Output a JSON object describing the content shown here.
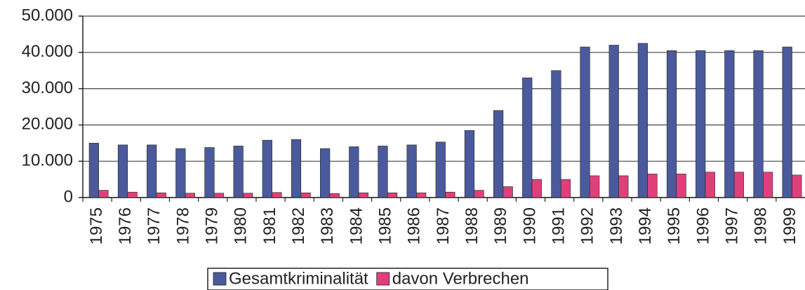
{
  "chart_data": {
    "type": "bar",
    "categories": [
      "1975",
      "1976",
      "1977",
      "1978",
      "1979",
      "1980",
      "1981",
      "1982",
      "1983",
      "1984",
      "1985",
      "1986",
      "1987",
      "1988",
      "1989",
      "1990",
      "1991",
      "1992",
      "1993",
      "1994",
      "1995",
      "1996",
      "1997",
      "1998",
      "1999"
    ],
    "series": [
      {
        "name": "Gesamtkriminalität",
        "color": "#4a5a9c",
        "values": [
          15000,
          14500,
          14500,
          13500,
          13800,
          14200,
          15800,
          16000,
          13500,
          14000,
          14200,
          14500,
          15300,
          18500,
          24000,
          33000,
          35000,
          41500,
          42000,
          42500,
          40500,
          40500,
          40500,
          40500,
          41500
        ]
      },
      {
        "name": "davon Verbrechen",
        "color": "#e0407a",
        "values": [
          2000,
          1500,
          1300,
          1200,
          1200,
          1200,
          1400,
          1300,
          1100,
          1300,
          1300,
          1300,
          1500,
          2000,
          3000,
          5000,
          5000,
          6000,
          6000,
          6500,
          6500,
          7000,
          7000,
          7000,
          6200
        ]
      }
    ],
    "ylim": [
      0,
      50000
    ],
    "yticks": [
      0,
      {
        "value": 10000,
        "label": "10.000"
      },
      {
        "value": 20000,
        "label": "20.000"
      },
      {
        "value": 30000,
        "label": "30.000"
      },
      {
        "value": 40000,
        "label": "40.000"
      },
      {
        "value": 50000,
        "label": "50.000"
      }
    ],
    "grid": true,
    "legend": "bottom"
  }
}
